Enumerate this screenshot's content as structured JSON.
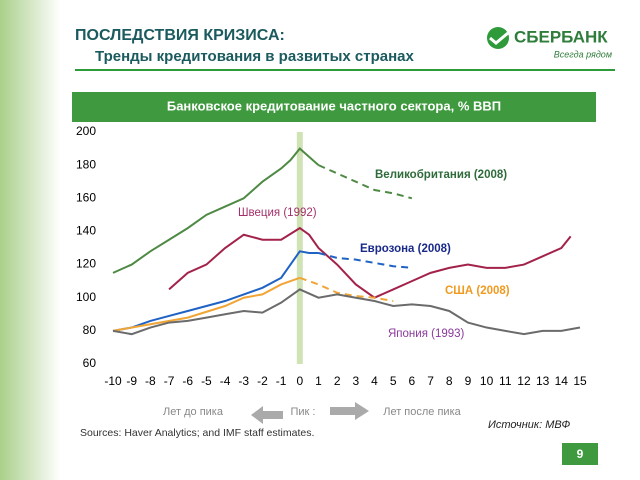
{
  "header": {
    "title": "ПОСЛЕДСТВИЯ КРИЗИСА:",
    "subtitle": "Тренды кредитования в развитых странах",
    "logo": "СБЕРБАНК",
    "slogan": "Всегда рядом"
  },
  "chart_data": {
    "type": "line",
    "title": "Банковское кредитование частного сектора, % ВВП",
    "xlim": [
      -10,
      15
    ],
    "xticks": [
      -10,
      -9,
      -8,
      -7,
      -6,
      -5,
      -4,
      -3,
      -2,
      -1,
      0,
      1,
      2,
      3,
      4,
      5,
      6,
      7,
      8,
      9,
      10,
      11,
      12,
      13,
      14,
      15
    ],
    "ylim": [
      60,
      200
    ],
    "yticks": [
      60,
      80,
      100,
      120,
      140,
      160,
      180,
      200
    ],
    "peak_band": 0,
    "series": [
      {
        "name": "Великобритания (2008)",
        "color": "#4f8a45",
        "label_color": "#2e6b3a",
        "x": [
          -10,
          -9,
          -8,
          -7,
          -6,
          -5,
          -4,
          -3,
          -2,
          -1,
          -0.5,
          0,
          0.5,
          1
        ],
        "values": [
          115,
          120,
          128,
          135,
          142,
          150,
          155,
          160,
          170,
          178,
          183,
          190,
          185,
          180
        ],
        "forecast_x": [
          1,
          2,
          3,
          4,
          5,
          6
        ],
        "forecast_values": [
          180,
          175,
          170,
          165,
          163,
          160
        ]
      },
      {
        "name": "Швеция (1992)",
        "color": "#a3224a",
        "label_color": "#a3306a",
        "x": [
          -7,
          -6,
          -5,
          -4,
          -3,
          -2,
          -1,
          0,
          0.5,
          1,
          2,
          3,
          4,
          5,
          6,
          7,
          8,
          9,
          10,
          11,
          12,
          13,
          14,
          14.5
        ],
        "values": [
          105,
          115,
          120,
          130,
          138,
          135,
          135,
          142,
          138,
          130,
          120,
          108,
          100,
          105,
          110,
          115,
          118,
          120,
          118,
          118,
          120,
          125,
          130,
          137
        ]
      },
      {
        "name": "Еврозона (2008)",
        "color": "#1f62c4",
        "label_color": "#1a2a8a",
        "x": [
          -10,
          -9,
          -8,
          -7,
          -6,
          -5,
          -4,
          -3,
          -2,
          -1,
          -0.5,
          0,
          0.5,
          1
        ],
        "values": [
          80,
          82,
          86,
          89,
          92,
          95,
          98,
          102,
          106,
          112,
          120,
          128,
          127,
          127
        ],
        "forecast_x": [
          1,
          2,
          3,
          4,
          5,
          6
        ],
        "forecast_values": [
          127,
          124,
          123,
          121,
          119,
          118
        ]
      },
      {
        "name": "США (2008)",
        "color": "#f0a535",
        "label_color": "#f09a20",
        "x": [
          -10,
          -8,
          -6,
          -4,
          -3,
          -2,
          -1,
          0
        ],
        "values": [
          80,
          84,
          88,
          95,
          100,
          102,
          108,
          112
        ],
        "forecast_x": [
          0,
          1,
          2,
          3,
          4,
          5
        ],
        "forecast_values": [
          112,
          108,
          103,
          101,
          100,
          98
        ]
      },
      {
        "name": "Япония (1993)",
        "color": "#6b6b6b",
        "label_color": "#8a3a9a",
        "x": [
          -10,
          -9,
          -8,
          -7,
          -6,
          -5,
          -4,
          -3,
          -2,
          -1,
          0,
          1,
          2,
          3,
          4,
          5,
          6,
          7,
          8,
          9,
          10,
          11,
          12,
          13,
          14,
          15
        ],
        "values": [
          80,
          78,
          82,
          85,
          86,
          88,
          90,
          92,
          91,
          97,
          105,
          100,
          102,
          100,
          98,
          95,
          96,
          95,
          92,
          85,
          82,
          80,
          78,
          80,
          80,
          82
        ]
      }
    ],
    "annotations": {
      "before": "Лет до пика",
      "peak": "Пик :",
      "after": "Лет после пика",
      "sources": "Sources: Haver Analytics;  and IMF staff estimates.",
      "source": "Источник: МВФ"
    }
  },
  "page_number": "9"
}
